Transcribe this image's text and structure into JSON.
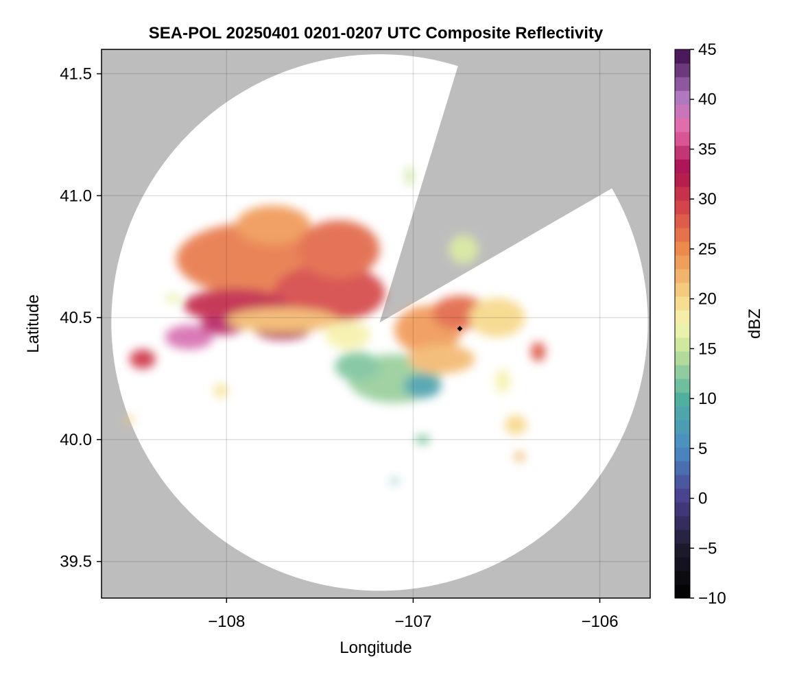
{
  "chart_data": {
    "type": "heatmap",
    "title": "SEA-POL 20250401 0201-0207 UTC Composite Reflectivity",
    "xlabel": "Longitude",
    "ylabel": "Latitude",
    "xlim": [
      -108.67,
      -105.73
    ],
    "ylim": [
      39.35,
      41.6
    ],
    "xticks": [
      -108,
      -107,
      -106
    ],
    "xtick_labels": [
      "−108",
      "−107",
      "−106"
    ],
    "yticks": [
      39.5,
      40.0,
      40.5,
      41.0,
      41.5
    ],
    "ytick_labels": [
      "39.5",
      "40.0",
      "40.5",
      "41.0",
      "41.5"
    ],
    "grid": true,
    "background_color": "#bdbdbd",
    "coverage_color": "#ffffff",
    "radar": {
      "center_lon": -107.18,
      "center_lat": 40.48,
      "range_deg_lat": 1.1,
      "blocked_sectors_deg": [
        [
          17,
          60
        ]
      ]
    },
    "marker": {
      "lon": -106.75,
      "lat": 40.455,
      "symbol": "diamond",
      "color": "#000000"
    },
    "colorbar": {
      "label": "dBZ",
      "min": -10,
      "max": 45,
      "step": 1.375,
      "ticks": [
        -10,
        -5,
        0,
        5,
        10,
        15,
        20,
        25,
        30,
        35,
        40,
        45
      ],
      "tick_labels": [
        "−10",
        "−5",
        "0",
        "5",
        "10",
        "15",
        "20",
        "25",
        "30",
        "35",
        "40",
        "45"
      ],
      "stops": [
        {
          "v": -10,
          "c": "#000000"
        },
        {
          "v": -5,
          "c": "#1c1a2c"
        },
        {
          "v": 0,
          "c": "#4a3f8c"
        },
        {
          "v": 5,
          "c": "#4a8cc4"
        },
        {
          "v": 10,
          "c": "#4fb0a0"
        },
        {
          "v": 15,
          "c": "#c8e49a"
        },
        {
          "v": 17.5,
          "c": "#f6f7b4"
        },
        {
          "v": 20,
          "c": "#f6d88a"
        },
        {
          "v": 25,
          "c": "#ee8a4c"
        },
        {
          "v": 30,
          "c": "#cf3848"
        },
        {
          "v": 33,
          "c": "#a81050"
        },
        {
          "v": 37,
          "c": "#e86aa8"
        },
        {
          "v": 40,
          "c": "#b47cc4"
        },
        {
          "v": 45,
          "c": "#3a0a4a"
        }
      ]
    },
    "echoes": [
      {
        "lon": -107.85,
        "lat": 40.74,
        "rx": 0.42,
        "ry": 0.15,
        "dbz": 26
      },
      {
        "lon": -107.75,
        "lat": 40.88,
        "rx": 0.2,
        "ry": 0.08,
        "dbz": 24
      },
      {
        "lon": -107.45,
        "lat": 40.6,
        "rx": 0.3,
        "ry": 0.12,
        "dbz": 29
      },
      {
        "lon": -107.4,
        "lat": 40.78,
        "rx": 0.22,
        "ry": 0.12,
        "dbz": 27
      },
      {
        "lon": -107.95,
        "lat": 40.55,
        "rx": 0.28,
        "ry": 0.07,
        "dbz": 31
      },
      {
        "lon": -108.2,
        "lat": 40.42,
        "rx": 0.13,
        "ry": 0.05,
        "dbz": 38
      },
      {
        "lon": -108.02,
        "lat": 40.47,
        "rx": 0.12,
        "ry": 0.04,
        "dbz": 34
      },
      {
        "lon": -107.7,
        "lat": 40.45,
        "rx": 0.15,
        "ry": 0.04,
        "dbz": 33
      },
      {
        "lon": -107.7,
        "lat": 40.49,
        "rx": 0.3,
        "ry": 0.05,
        "dbz": 22
      },
      {
        "lon": -108.45,
        "lat": 40.33,
        "rx": 0.07,
        "ry": 0.04,
        "dbz": 30
      },
      {
        "lon": -108.29,
        "lat": 40.58,
        "rx": 0.04,
        "ry": 0.02,
        "dbz": 17
      },
      {
        "lon": -107.35,
        "lat": 40.43,
        "rx": 0.12,
        "ry": 0.06,
        "dbz": 18
      },
      {
        "lon": -106.92,
        "lat": 40.45,
        "rx": 0.18,
        "ry": 0.1,
        "dbz": 24
      },
      {
        "lon": -106.75,
        "lat": 40.52,
        "rx": 0.15,
        "ry": 0.07,
        "dbz": 27
      },
      {
        "lon": -106.55,
        "lat": 40.5,
        "rx": 0.15,
        "ry": 0.08,
        "dbz": 20
      },
      {
        "lon": -107.1,
        "lat": 40.25,
        "rx": 0.25,
        "ry": 0.1,
        "dbz": 13
      },
      {
        "lon": -106.95,
        "lat": 40.22,
        "rx": 0.1,
        "ry": 0.05,
        "dbz": 8
      },
      {
        "lon": -107.3,
        "lat": 40.3,
        "rx": 0.12,
        "ry": 0.06,
        "dbz": 12
      },
      {
        "lon": -106.85,
        "lat": 40.33,
        "rx": 0.18,
        "ry": 0.06,
        "dbz": 22
      },
      {
        "lon": -106.33,
        "lat": 40.36,
        "rx": 0.04,
        "ry": 0.04,
        "dbz": 28
      },
      {
        "lon": -106.52,
        "lat": 40.24,
        "rx": 0.04,
        "ry": 0.05,
        "dbz": 18
      },
      {
        "lon": -106.45,
        "lat": 40.06,
        "rx": 0.06,
        "ry": 0.04,
        "dbz": 20
      },
      {
        "lon": -106.43,
        "lat": 39.93,
        "rx": 0.03,
        "ry": 0.02,
        "dbz": 22
      },
      {
        "lon": -108.03,
        "lat": 40.2,
        "rx": 0.04,
        "ry": 0.03,
        "dbz": 19
      },
      {
        "lon": -108.52,
        "lat": 40.08,
        "rx": 0.02,
        "ry": 0.02,
        "dbz": 21
      },
      {
        "lon": -106.95,
        "lat": 40.0,
        "rx": 0.04,
        "ry": 0.02,
        "dbz": 12
      },
      {
        "lon": -106.73,
        "lat": 40.78,
        "rx": 0.08,
        "ry": 0.06,
        "dbz": 16
      },
      {
        "lon": -107.02,
        "lat": 41.08,
        "rx": 0.02,
        "ry": 0.04,
        "dbz": 15
      },
      {
        "lon": -107.1,
        "lat": 39.83,
        "rx": 0.02,
        "ry": 0.01,
        "dbz": 9
      }
    ]
  }
}
